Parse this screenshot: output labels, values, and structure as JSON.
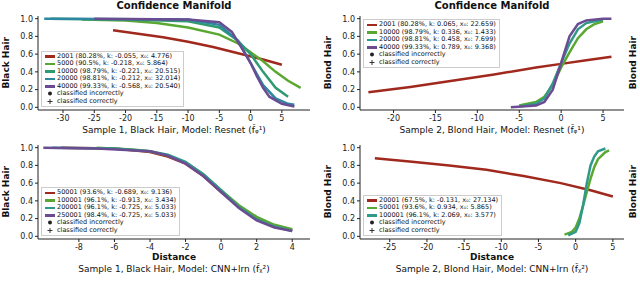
{
  "chart_data": [
    {
      "type": "line",
      "title": "Confidence Manifold",
      "caption": "Sample 1, Black Hair, Model: Resnet (f̂ᵩ¹)",
      "y_label": "Black Hair",
      "xlim": [
        -34,
        9.5
      ],
      "xticks": [
        -30,
        -25,
        -20,
        -15,
        -10,
        -5,
        0,
        5
      ],
      "ylim": [
        -0.03,
        1.03
      ],
      "yticks": [
        {
          "value": 0,
          "label": "0.0"
        },
        0.2,
        0.4,
        0.6,
        0.8,
        {
          "value": 1,
          "label": "1.0"
        }
      ],
      "grid": false,
      "legend": "lower left",
      "series": [
        {
          "name": "2001 (80.28%, k: -0.055, x₀: 4.776)",
          "color": "#a0281c",
          "x": [
            -22,
            -18,
            -14,
            -10,
            -6,
            -2,
            2,
            5
          ],
          "values": [
            0.87,
            0.83,
            0.79,
            0.74,
            0.68,
            0.61,
            0.54,
            0.48
          ]
        },
        {
          "name": "5000 (90.5%, k: -0.218, x₀: 5.864)",
          "color": "#5aa832",
          "x": [
            -27,
            -20,
            -15,
            -10,
            -5,
            -2,
            0,
            2,
            4,
            6,
            8
          ],
          "values": [
            0.99,
            0.98,
            0.95,
            0.9,
            0.82,
            0.72,
            0.62,
            0.52,
            0.4,
            0.3,
            0.22
          ]
        },
        {
          "name": "10000 (98.79%, k: -0.221, x₀: 20.515)",
          "color": "#2f9a6f",
          "x": [
            -32,
            -20,
            -10,
            -5,
            -2,
            0,
            2,
            4,
            6
          ],
          "values": [
            1.0,
            0.99,
            0.97,
            0.9,
            0.75,
            0.6,
            0.4,
            0.22,
            0.12
          ]
        },
        {
          "name": "20000 (98.81%, k: -0.212, x₀: 32.014)",
          "color": "#2d87a0",
          "x": [
            -33,
            -10,
            -5,
            -2,
            0,
            2,
            4,
            6,
            7
          ],
          "values": [
            1.0,
            0.99,
            0.93,
            0.75,
            0.5,
            0.25,
            0.1,
            0.04,
            0.03
          ]
        },
        {
          "name": "40000 (99.33%, k: -0.568, x₀: 20.540)",
          "color": "#6a4c93",
          "x": [
            -25,
            -10,
            -5,
            -3,
            -1,
            0,
            1,
            2,
            3,
            5,
            7
          ],
          "values": [
            1.0,
            0.99,
            0.96,
            0.85,
            0.62,
            0.5,
            0.35,
            0.22,
            0.12,
            0.04,
            0.01
          ]
        }
      ],
      "marker_legend": [
        {
          "name": "classified incorrectly",
          "marker": "circle"
        },
        {
          "name": "classified correctly",
          "marker": "plus"
        }
      ]
    },
    {
      "type": "line",
      "title": "Confidence Manifold",
      "caption": "Sample 2, Blond Hair, Model: Resnet (f̂ᵩ¹)",
      "y_label": "Blond Hair",
      "y_label_right": "Blond Hair",
      "xlim": [
        -24,
        7.5
      ],
      "xticks": [
        -20,
        -15,
        -10,
        -5,
        0,
        5
      ],
      "ylim": [
        -0.03,
        1.03
      ],
      "yticks": [
        {
          "value": 0,
          "label": "0.0"
        },
        0.2,
        0.4,
        0.6,
        0.8,
        {
          "value": 1,
          "label": "1.0"
        }
      ],
      "grid": false,
      "legend": "upper left",
      "series": [
        {
          "name": "2001 (80.28%, k: 0.065, x₀: 22.659)",
          "color": "#a0281c",
          "x": [
            -23,
            -18,
            -13,
            -8,
            -3,
            0,
            3,
            6
          ],
          "values": [
            0.17,
            0.23,
            0.3,
            0.37,
            0.45,
            0.49,
            0.53,
            0.57
          ]
        },
        {
          "name": "10000 (98.79%, k: 0.336, x₀: 1.433)",
          "color": "#5aa832",
          "x": [
            -5,
            -3,
            -2,
            -1,
            0,
            1,
            2,
            3,
            4,
            5
          ],
          "values": [
            0.02,
            0.06,
            0.12,
            0.25,
            0.45,
            0.62,
            0.78,
            0.88,
            0.94,
            0.97
          ]
        },
        {
          "name": "20000 (98.81%, k: 0.458, x₀: 7.699)",
          "color": "#2f9a8a",
          "x": [
            -5,
            -3,
            -2,
            -1,
            0,
            1,
            2,
            3,
            5
          ],
          "values": [
            0.01,
            0.04,
            0.1,
            0.27,
            0.5,
            0.72,
            0.88,
            0.95,
            0.99
          ]
        },
        {
          "name": "40000 (99.33%, k: 0.789, x₀: 9.368)",
          "color": "#6a4c93",
          "x": [
            -6,
            -3,
            -2,
            -1,
            0,
            1,
            2,
            3,
            5,
            6
          ],
          "values": [
            0.0,
            0.02,
            0.06,
            0.2,
            0.5,
            0.8,
            0.94,
            0.98,
            1.0,
            1.0
          ]
        }
      ],
      "marker_legend": [
        {
          "name": "classified incorrectly",
          "marker": "circle"
        },
        {
          "name": "classified correctly",
          "marker": "plus"
        }
      ]
    },
    {
      "type": "line",
      "caption": "Sample 1, Black Hair, Model: CNN+lrn (f̂ᵪ²)",
      "y_label": "Black Hair",
      "x_label": "Distance",
      "xlim": [
        -10.3,
        5
      ],
      "xticks": [
        -8,
        -6,
        -4,
        -2,
        0,
        2,
        4
      ],
      "ylim": [
        -0.03,
        1.03
      ],
      "yticks": [
        {
          "value": 0,
          "label": "0.0"
        },
        0.2,
        0.4,
        0.6,
        0.8,
        {
          "value": 1,
          "label": "1.0"
        }
      ],
      "grid": false,
      "legend": "lower left",
      "series": [
        {
          "name": "50001 (93.6%, k: -0.689, x₀: 9.136)",
          "color": "#a0281c",
          "x": [
            -9,
            -6,
            -4,
            -3,
            -2,
            -1,
            0,
            1,
            2,
            3,
            4
          ],
          "values": [
            1.0,
            0.99,
            0.95,
            0.9,
            0.82,
            0.68,
            0.5,
            0.33,
            0.2,
            0.12,
            0.07
          ]
        },
        {
          "name": "100001 (96.1%, k: -0.913, x₀: 3.434)",
          "color": "#5aa832",
          "x": [
            -7,
            -5,
            -4,
            -3,
            -2,
            -1,
            0,
            1,
            2,
            3,
            4
          ],
          "values": [
            1.0,
            0.98,
            0.96,
            0.91,
            0.83,
            0.7,
            0.52,
            0.35,
            0.22,
            0.13,
            0.08
          ]
        },
        {
          "name": "200001 (96.1%, k: -0.725, x₀: 5.033)",
          "color": "#2f9a8a",
          "x": [
            -9.5,
            -6,
            -4,
            -3,
            -2,
            -1,
            0,
            1,
            2,
            3,
            4
          ],
          "values": [
            1.0,
            0.99,
            0.96,
            0.92,
            0.84,
            0.7,
            0.52,
            0.33,
            0.19,
            0.11,
            0.06
          ]
        },
        {
          "name": "250001 (98.4%, k: -0.725, x₀: 5.033)",
          "color": "#6a4c93",
          "x": [
            -10,
            -7,
            -4,
            -3,
            -2,
            -1,
            0,
            1,
            2,
            3,
            4
          ],
          "values": [
            1.0,
            0.99,
            0.96,
            0.91,
            0.82,
            0.68,
            0.5,
            0.32,
            0.18,
            0.1,
            0.06
          ]
        }
      ],
      "marker_legend": [
        {
          "name": "classified incorrectly",
          "marker": "circle"
        },
        {
          "name": "classified correctly",
          "marker": "plus"
        }
      ]
    },
    {
      "type": "line",
      "caption": "Sample 2, Blond Hair, Model: CNN+lrn (f̂ᵪ²)",
      "y_label": "Blond Hair",
      "y_label_right": "Blond Hair",
      "x_label": "Distance",
      "xlim": [
        -29,
        6.5
      ],
      "xticks": [
        -25,
        -20,
        -15,
        -10,
        -5,
        0,
        5
      ],
      "ylim": [
        -0.03,
        1.03
      ],
      "yticks": [
        {
          "value": 0,
          "label": "0.0"
        },
        0.2,
        0.4,
        0.6,
        0.8,
        {
          "value": 1,
          "label": "1.0"
        }
      ],
      "grid": false,
      "legend": "lower left",
      "series": [
        {
          "name": "20001 (67.5%, k: -0.131, x₀: 27.134)",
          "color": "#a0281c",
          "x": [
            -27,
            -22,
            -17,
            -12,
            -7,
            -2,
            2,
            5
          ],
          "values": [
            0.88,
            0.84,
            0.8,
            0.75,
            0.68,
            0.6,
            0.52,
            0.45
          ]
        },
        {
          "name": "50001 (93.6%, k: 0.934, x₀: 5.865)",
          "color": "#5aa832",
          "x": [
            -1.5,
            -0.5,
            0,
            0.5,
            1,
            1.5,
            2,
            2.5,
            3,
            4,
            4.5
          ],
          "values": [
            0.02,
            0.05,
            0.1,
            0.2,
            0.35,
            0.5,
            0.65,
            0.78,
            0.87,
            0.95,
            0.97
          ]
        },
        {
          "name": "100001 (96.1%, k: 2.069, x₀: 3.577)",
          "color": "#2f9a8a",
          "x": [
            -1,
            0,
            0.5,
            1,
            1.5,
            2,
            2.5,
            3,
            4
          ],
          "values": [
            0.01,
            0.05,
            0.15,
            0.35,
            0.6,
            0.8,
            0.9,
            0.96,
            0.99
          ]
        }
      ],
      "marker_legend": [
        {
          "name": "classified incorrectly",
          "marker": "circle"
        },
        {
          "name": "classified correctly",
          "marker": "plus"
        }
      ]
    }
  ]
}
